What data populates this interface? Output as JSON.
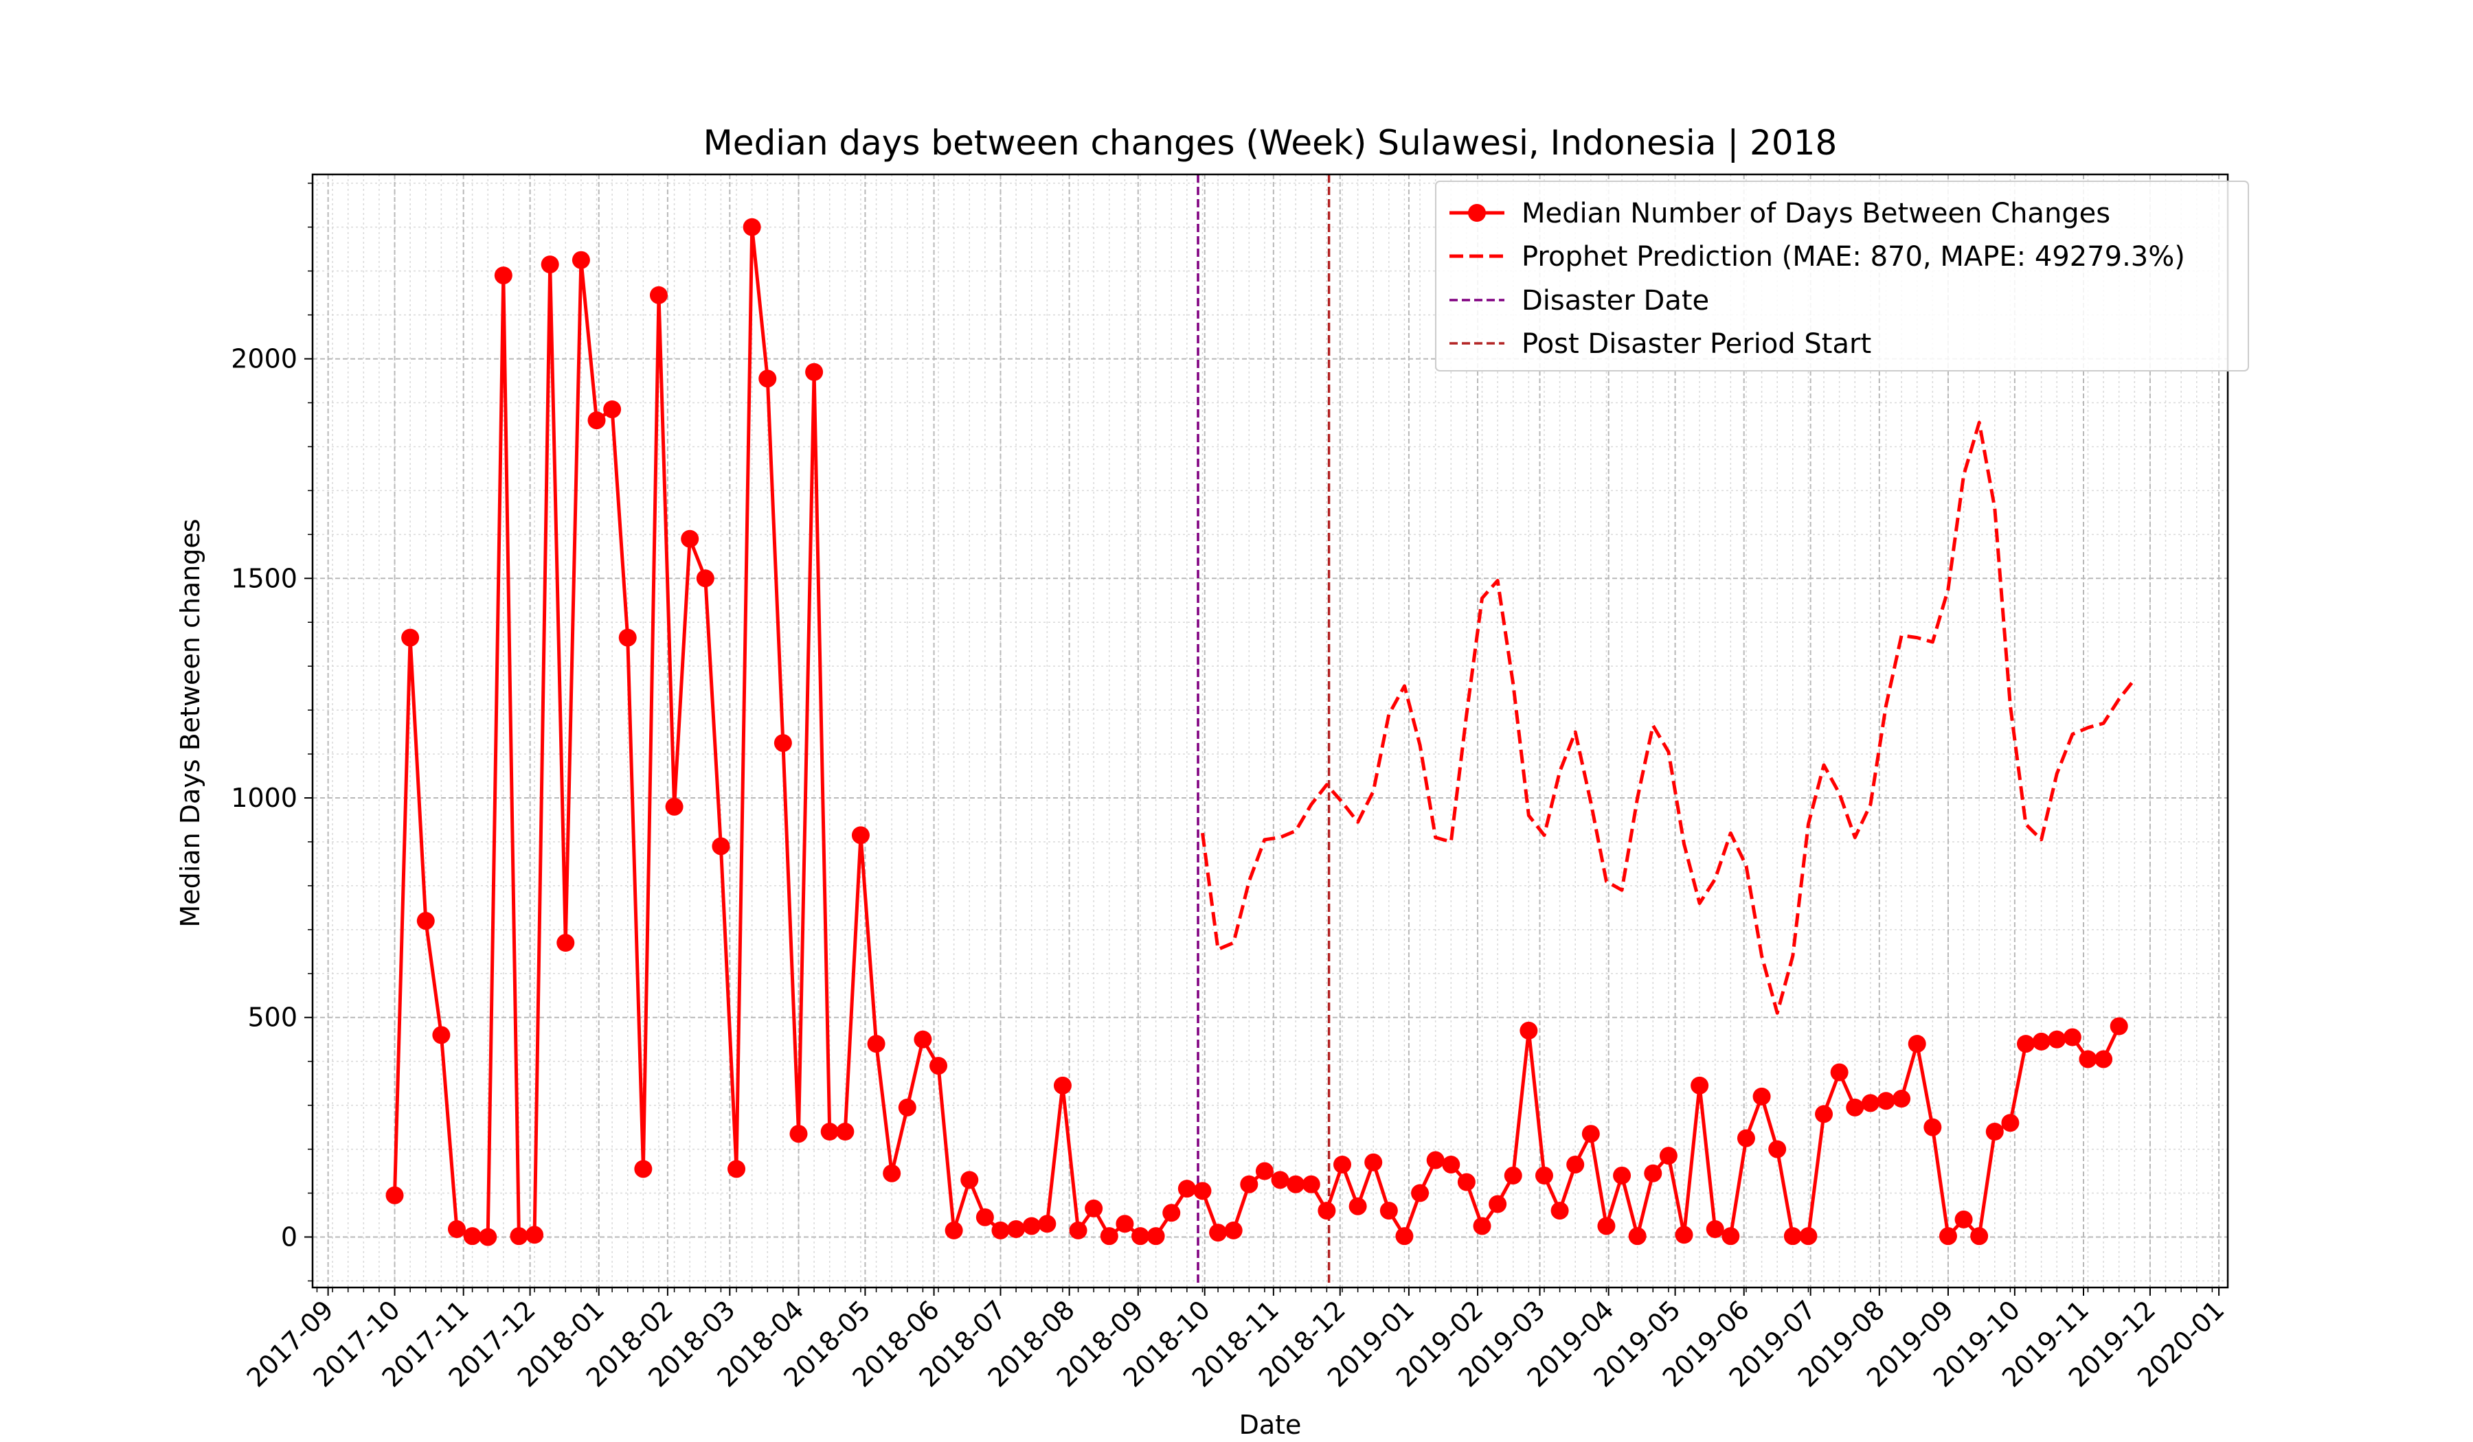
{
  "chart_data": {
    "type": "line",
    "title": "Median days between changes (Week) Sulawesi, Indonesia | 2018",
    "xlabel": "Date",
    "ylabel": "Median Days Between changes",
    "xlim": [
      "2017-08-25",
      "2020-01-05"
    ],
    "ylim": [
      -115,
      2420
    ],
    "grid": true,
    "legend_position": "top-right",
    "x_ticks": [
      "2017-09",
      "2017-10",
      "2017-11",
      "2017-12",
      "2018-01",
      "2018-02",
      "2018-03",
      "2018-04",
      "2018-05",
      "2018-06",
      "2018-07",
      "2018-08",
      "2018-09",
      "2018-10",
      "2018-11",
      "2018-12",
      "2019-01",
      "2019-02",
      "2019-03",
      "2019-04",
      "2019-05",
      "2019-06",
      "2019-07",
      "2019-08",
      "2019-09",
      "2019-10",
      "2019-11",
      "2019-12",
      "2020-01"
    ],
    "y_ticks": [
      0,
      500,
      1000,
      1500,
      2000
    ],
    "series": [
      {
        "name": "Median Number of Days Between Changes",
        "color": "#ff0000",
        "style": "solid",
        "marker": "circle",
        "x": [
          "2017-10-01",
          "2017-10-08",
          "2017-10-15",
          "2017-10-22",
          "2017-10-29",
          "2017-11-05",
          "2017-11-12",
          "2017-11-19",
          "2017-11-26",
          "2017-12-03",
          "2017-12-10",
          "2017-12-17",
          "2017-12-24",
          "2017-12-31",
          "2018-01-07",
          "2018-01-14",
          "2018-01-21",
          "2018-01-28",
          "2018-02-04",
          "2018-02-11",
          "2018-02-18",
          "2018-02-25",
          "2018-03-04",
          "2018-03-11",
          "2018-03-18",
          "2018-03-25",
          "2018-04-01",
          "2018-04-08",
          "2018-04-15",
          "2018-04-22",
          "2018-04-29",
          "2018-05-06",
          "2018-05-13",
          "2018-05-20",
          "2018-05-27",
          "2018-06-03",
          "2018-06-10",
          "2018-06-17",
          "2018-06-24",
          "2018-07-01",
          "2018-07-08",
          "2018-07-15",
          "2018-07-22",
          "2018-07-29",
          "2018-08-05",
          "2018-08-12",
          "2018-08-19",
          "2018-08-26",
          "2018-09-02",
          "2018-09-09",
          "2018-09-16",
          "2018-09-23",
          "2018-09-30",
          "2018-10-07",
          "2018-10-14",
          "2018-10-21",
          "2018-10-28",
          "2018-11-04",
          "2018-11-11",
          "2018-11-18",
          "2018-11-25",
          "2018-12-02",
          "2018-12-09",
          "2018-12-16",
          "2018-12-23",
          "2018-12-30",
          "2019-01-06",
          "2019-01-13",
          "2019-01-20",
          "2019-01-27",
          "2019-02-03",
          "2019-02-10",
          "2019-02-17",
          "2019-02-24",
          "2019-03-03",
          "2019-03-10",
          "2019-03-17",
          "2019-03-24",
          "2019-03-31",
          "2019-04-07",
          "2019-04-14",
          "2019-04-21",
          "2019-04-28",
          "2019-05-05",
          "2019-05-12",
          "2019-05-19",
          "2019-05-26",
          "2019-06-02",
          "2019-06-09",
          "2019-06-16",
          "2019-06-23",
          "2019-06-30",
          "2019-07-07",
          "2019-07-14",
          "2019-07-21",
          "2019-07-28",
          "2019-08-04",
          "2019-08-11",
          "2019-08-18",
          "2019-08-25",
          "2019-09-01",
          "2019-09-08",
          "2019-09-15",
          "2019-09-22",
          "2019-09-29",
          "2019-10-06",
          "2019-10-13",
          "2019-10-20",
          "2019-10-27",
          "2019-11-03",
          "2019-11-10",
          "2019-11-17"
        ],
        "y": [
          95,
          1365,
          720,
          460,
          18,
          2,
          0,
          2190,
          2,
          5,
          2215,
          670,
          2225,
          1860,
          1885,
          1365,
          155,
          2145,
          980,
          1590,
          1500,
          890,
          155,
          2300,
          1955,
          1125,
          235,
          1970,
          240,
          240,
          915,
          440,
          145,
          295,
          450,
          390,
          15,
          130,
          45,
          15,
          18,
          25,
          30,
          345,
          15,
          65,
          2,
          30,
          2,
          2,
          55,
          110,
          105,
          10,
          15,
          120,
          150,
          130,
          120,
          120,
          60,
          165,
          70,
          170,
          60,
          2,
          100,
          175,
          165,
          125,
          25,
          75,
          140,
          470,
          140,
          60,
          165,
          235,
          25,
          140,
          2,
          145,
          185,
          5,
          345,
          18,
          2,
          225,
          320,
          200,
          2,
          2,
          280,
          375,
          295,
          305,
          310,
          315,
          440,
          250,
          2,
          40,
          2,
          240,
          260,
          440,
          445,
          450,
          455,
          405,
          405,
          480
        ]
      },
      {
        "name": "Prophet Prediction (MAE: 870, MAPE: 49279.3%)",
        "color": "#ff0000",
        "style": "dashed",
        "x": [
          "2018-09-30",
          "2018-10-07",
          "2018-10-14",
          "2018-10-21",
          "2018-10-28",
          "2018-11-04",
          "2018-11-11",
          "2018-11-18",
          "2018-11-25",
          "2018-12-02",
          "2018-12-09",
          "2018-12-16",
          "2018-12-23",
          "2018-12-30",
          "2019-01-06",
          "2019-01-13",
          "2019-01-20",
          "2019-01-27",
          "2019-02-03",
          "2019-02-10",
          "2019-02-17",
          "2019-02-24",
          "2019-03-03",
          "2019-03-10",
          "2019-03-17",
          "2019-03-24",
          "2019-03-31",
          "2019-04-07",
          "2019-04-14",
          "2019-04-21",
          "2019-04-28",
          "2019-05-05",
          "2019-05-12",
          "2019-05-19",
          "2019-05-26",
          "2019-06-02",
          "2019-06-09",
          "2019-06-16",
          "2019-06-23",
          "2019-06-30",
          "2019-07-07",
          "2019-07-14",
          "2019-07-21",
          "2019-07-28",
          "2019-08-04",
          "2019-08-11",
          "2019-08-18",
          "2019-08-25",
          "2019-09-01",
          "2019-09-08",
          "2019-09-15",
          "2019-09-22",
          "2019-09-29",
          "2019-10-06",
          "2019-10-13",
          "2019-10-20",
          "2019-10-27",
          "2019-11-03",
          "2019-11-10",
          "2019-11-17",
          "2019-11-24"
        ],
        "y": [
          920,
          655,
          670,
          810,
          905,
          910,
          925,
          985,
          1030,
          990,
          945,
          1015,
          1190,
          1255,
          1120,
          910,
          900,
          1190,
          1455,
          1495,
          1260,
          960,
          915,
          1060,
          1150,
          990,
          810,
          790,
          1000,
          1165,
          1105,
          895,
          760,
          815,
          920,
          845,
          640,
          510,
          640,
          940,
          1075,
          1010,
          910,
          985,
          1210,
          1370,
          1365,
          1355,
          1475,
          1735,
          1855,
          1660,
          1210,
          940,
          905,
          1055,
          1145,
          1160,
          1170,
          1225,
          1270
        ]
      }
    ],
    "vlines": [
      {
        "name": "Disaster Date",
        "x": "2018-09-28",
        "color": "#800080",
        "style": "dashed"
      },
      {
        "name": "Post Disaster Period Start",
        "x": "2018-11-26",
        "color": "#b22222",
        "style": "dashed"
      }
    ]
  }
}
